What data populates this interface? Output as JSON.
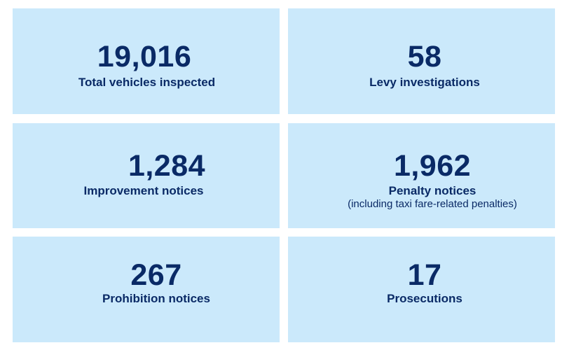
{
  "stats": [
    {
      "value": "19,016",
      "label": "Total vehicles inspected"
    },
    {
      "value": "58",
      "label": "Levy investigations"
    },
    {
      "value": "1,284",
      "label": "Improvement notices"
    },
    {
      "value": "1,962",
      "label": "Penalty notices",
      "sublabel": "(including taxi fare-related penalties)"
    },
    {
      "value": "267",
      "label": "Prohibition notices"
    },
    {
      "value": "17",
      "label": "Prosecutions"
    }
  ],
  "colors": {
    "tile_background": "#cbe9fb",
    "text": "#0a2a66",
    "page_background": "#ffffff"
  }
}
